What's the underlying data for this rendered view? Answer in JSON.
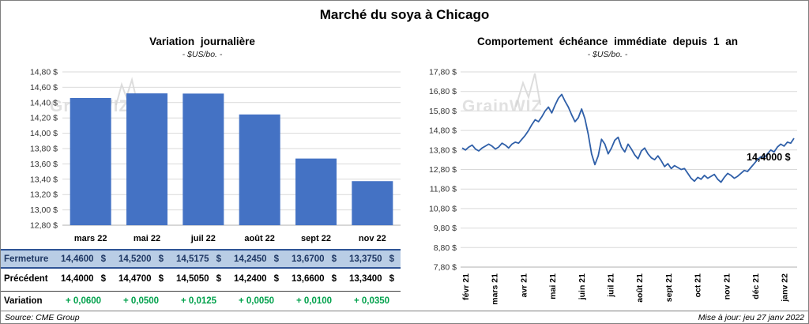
{
  "page": {
    "title": "Marché du soya à Chicago",
    "source": "Source: CME Group",
    "updated": "Mise à jour: jeu 27 janv 2022"
  },
  "table": {
    "colors": {
      "fermeture_bg": "#b9cde5",
      "fermeture_text": "#1f3864",
      "variation_green": "#00a14b"
    },
    "rows": [
      {
        "label": "Fermeture",
        "values": [
          "14,4600",
          "14,5200",
          "14,5175",
          "14,2450",
          "13,6700",
          "13,3750"
        ],
        "currency": "$"
      },
      {
        "label": "Précédent",
        "values": [
          "14,4000",
          "14,4700",
          "14,5050",
          "14,2400",
          "13,6600",
          "13,3400"
        ],
        "currency": "$"
      },
      {
        "label": "Variation",
        "values": [
          "+ 0,0600",
          "+ 0,0500",
          "+ 0,0125",
          "+ 0,0050",
          "+ 0,0100",
          "+ 0,0350"
        ],
        "currency": ""
      }
    ]
  },
  "chart_data": [
    {
      "type": "bar",
      "title": "Variation journalière",
      "subtitle": "- $US/bo. -",
      "watermark": "GrainWIZ",
      "categories": [
        "mars 22",
        "mai 22",
        "juil 22",
        "août 22",
        "sept 22",
        "nov 22"
      ],
      "values": [
        14.46,
        14.52,
        14.5175,
        14.245,
        13.67,
        13.375
      ],
      "ylim": [
        12.8,
        14.8
      ],
      "ytick_labels": [
        "14,80 $",
        "14,60 $",
        "14,40 $",
        "14,20 $",
        "14,00 $",
        "13,80 $",
        "13,60 $",
        "13,40 $",
        "13,20 $",
        "13,00 $",
        "12,80 $"
      ],
      "bar_color": "#4472c4",
      "grid": true,
      "legend": "none"
    },
    {
      "type": "line",
      "title": "Comportement échéance immédiate depuis 1 an",
      "subtitle": "- $US/bo. -",
      "watermark": "GrainWIZ",
      "annotation": "14,4000 $",
      "x_labels": [
        "févr 21",
        "mars 21",
        "avr 21",
        "mai 21",
        "juin 21",
        "juil 21",
        "août 21",
        "sept 21",
        "oct 21",
        "nov 21",
        "déc 21",
        "janv 22"
      ],
      "values": [
        13.9,
        13.8,
        13.95,
        14.05,
        13.85,
        13.75,
        13.9,
        14.0,
        14.1,
        14.0,
        13.85,
        13.95,
        14.15,
        14.05,
        13.9,
        14.1,
        14.2,
        14.15,
        14.35,
        14.55,
        14.8,
        15.1,
        15.35,
        15.25,
        15.5,
        15.8,
        16.0,
        15.7,
        16.1,
        16.45,
        16.65,
        16.3,
        16.0,
        15.6,
        15.25,
        15.45,
        15.9,
        15.4,
        14.6,
        13.6,
        13.05,
        13.5,
        14.35,
        14.1,
        13.6,
        13.9,
        14.3,
        14.45,
        13.95,
        13.7,
        14.1,
        13.85,
        13.55,
        13.35,
        13.75,
        13.9,
        13.6,
        13.4,
        13.3,
        13.5,
        13.25,
        12.95,
        13.1,
        12.85,
        13.0,
        12.9,
        12.8,
        12.85,
        12.6,
        12.35,
        12.2,
        12.4,
        12.3,
        12.5,
        12.35,
        12.45,
        12.55,
        12.3,
        12.15,
        12.4,
        12.6,
        12.5,
        12.35,
        12.45,
        12.6,
        12.75,
        12.7,
        12.9,
        13.1,
        13.3,
        13.45,
        13.4,
        13.6,
        13.8,
        13.7,
        13.95,
        14.1,
        14.0,
        14.2,
        14.15,
        14.4
      ],
      "ylim": [
        7.8,
        17.8
      ],
      "ytick_labels": [
        "17,80 $",
        "16,80 $",
        "15,80 $",
        "14,80 $",
        "13,80 $",
        "12,80 $",
        "11,80 $",
        "10,80 $",
        "9,80 $",
        "8,80 $",
        "7,80 $"
      ],
      "line_color": "#2f5fa8",
      "grid": true,
      "legend": "none",
      "x_label_rotation": -90
    }
  ]
}
